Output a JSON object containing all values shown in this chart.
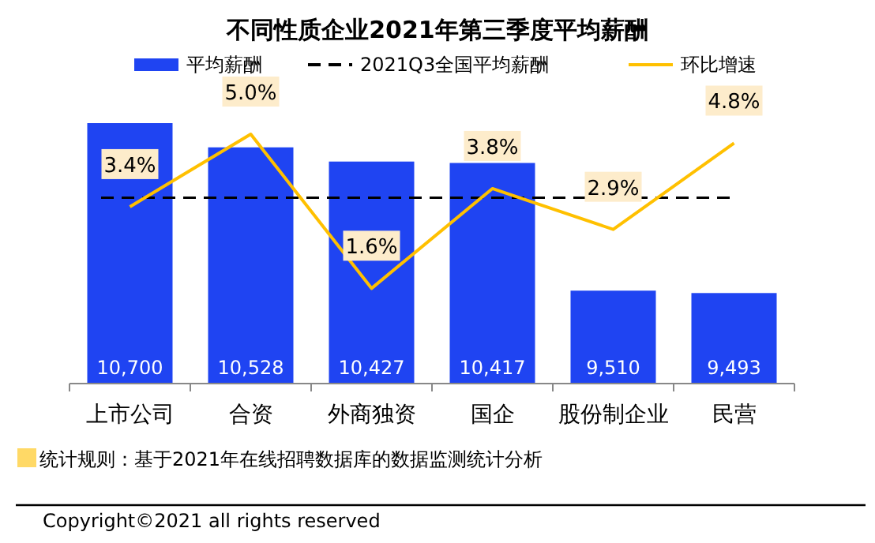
{
  "chart_data": {
    "type": "bar",
    "title": "不同性质企业2021年第三季度平均薪酬",
    "categories": [
      "上市公司",
      "合资",
      "外商独资",
      "国企",
      "股份制企业",
      "民营"
    ],
    "series": [
      {
        "name": "平均薪酬",
        "color": "#1f44f2",
        "values": [
          10700,
          10528,
          10427,
          10417,
          9510,
          9493
        ],
        "value_labels": [
          "10,700",
          "10,528",
          "10,427",
          "10,417",
          "9,510",
          "9,493"
        ]
      },
      {
        "name": "环比增速",
        "type": "line",
        "axis": "y2",
        "color": "#ffc000",
        "values": [
          3.4,
          5.0,
          1.6,
          3.8,
          2.9,
          4.8
        ],
        "value_labels": [
          "3.4%",
          "5.0%",
          "1.6%",
          "3.8%",
          "2.9%",
          "4.8%"
        ]
      }
    ],
    "ylim": [
      8850,
      10700
    ],
    "y2lim": [
      -0.5,
      5.0
    ],
    "tick_labels": "x",
    "ref_lines": [
      {
        "axis": "y",
        "value": 10170,
        "label": "2021Q3全国平均薪酬",
        "color": "#000000",
        "line_style": "dashed"
      }
    ],
    "legend": "top",
    "annotations": [
      "统计规则：基于2021年在线招聘数据库的数据监测统计分析",
      "Copyright©2021 all rights reserved"
    ]
  }
}
